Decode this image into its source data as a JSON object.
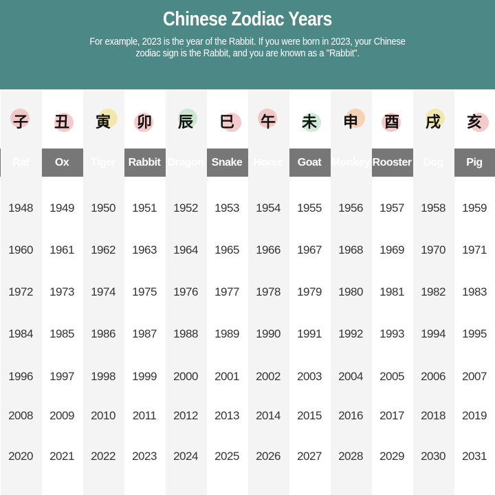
{
  "header": {
    "title": "Chinese Zodiac Years",
    "subtitle": "For example, 2023 is the year of the Rabbit. If you were born in 2023, your Chinese zodiac sign is the Rabbit, and you are known as a \"Rabbit\"."
  },
  "signs": [
    {
      "name": "Rat",
      "char": "子",
      "accent": "#f2b8b8",
      "years": [
        "1948",
        "1960",
        "1972",
        "1984",
        "1996",
        "2008",
        "2020"
      ]
    },
    {
      "name": "Ox",
      "char": "丑",
      "accent": "#f2b8b8",
      "years": [
        "1949",
        "1961",
        "1973",
        "1985",
        "1997",
        "2009",
        "2021"
      ]
    },
    {
      "name": "Tiger",
      "char": "寅",
      "accent": "#f3e39a",
      "years": [
        "1950",
        "1962",
        "1974",
        "1986",
        "1998",
        "2010",
        "2022"
      ]
    },
    {
      "name": "Rabbit",
      "char": "卯",
      "accent": "#f2b8b8",
      "years": [
        "1951",
        "1963",
        "1975",
        "1987",
        "1999",
        "2011",
        "2023"
      ]
    },
    {
      "name": "Dragon",
      "char": "辰",
      "accent": "#bfe3c8",
      "years": [
        "1952",
        "1964",
        "1976",
        "1988",
        "2000",
        "2012",
        "2024"
      ]
    },
    {
      "name": "Snake",
      "char": "巳",
      "accent": "#f2b8b8",
      "years": [
        "1953",
        "1965",
        "1977",
        "1989",
        "2001",
        "2013",
        "2025"
      ]
    },
    {
      "name": "Horse",
      "char": "午",
      "accent": "#f2b8b8",
      "years": [
        "1954",
        "1966",
        "1978",
        "1990",
        "2002",
        "2014",
        "2026"
      ]
    },
    {
      "name": "Goat",
      "char": "未",
      "accent": "#bfe3c8",
      "years": [
        "1955",
        "1967",
        "1979",
        "1991",
        "2003",
        "2015",
        "2027"
      ]
    },
    {
      "name": "Monkey",
      "char": "申",
      "accent": "#f5c6a0",
      "years": [
        "1956",
        "1968",
        "1980",
        "1992",
        "2004",
        "2016",
        "2028"
      ]
    },
    {
      "name": "Rooster",
      "char": "酉",
      "accent": "#f2b8b8",
      "years": [
        "1957",
        "1969",
        "1981",
        "1993",
        "2005",
        "2017",
        "2029"
      ]
    },
    {
      "name": "Dog",
      "char": "戌",
      "accent": "#f3e39a",
      "years": [
        "1958",
        "1970",
        "1982",
        "1994",
        "2006",
        "2018",
        "2030"
      ]
    },
    {
      "name": "Pig",
      "char": "亥",
      "accent": "#f2b8b8",
      "years": [
        "1959",
        "1971",
        "1983",
        "1995",
        "2007",
        "2019",
        "2031"
      ]
    }
  ]
}
